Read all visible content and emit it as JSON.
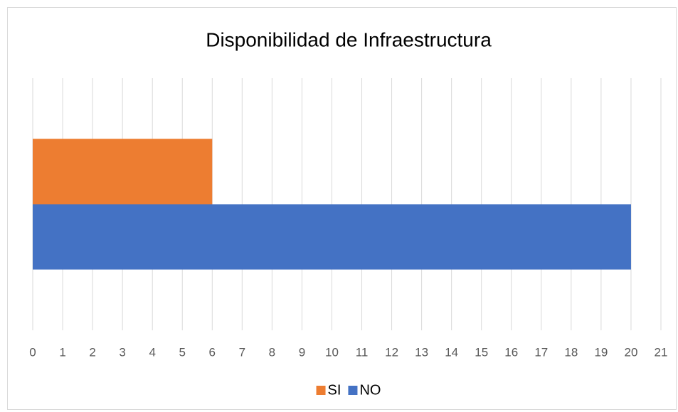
{
  "chart_data": {
    "type": "bar",
    "orientation": "horizontal",
    "title": "Disponibilidad de Infraestructura",
    "categories": [
      null
    ],
    "series": [
      {
        "name": "SI",
        "color": "#ed7d31",
        "values": [
          6
        ]
      },
      {
        "name": "NO",
        "color": "#4472c4",
        "values": [
          20
        ]
      }
    ],
    "xlim": [
      0,
      21
    ],
    "xticks": [
      0,
      1,
      2,
      3,
      4,
      5,
      6,
      7,
      8,
      9,
      10,
      11,
      12,
      13,
      14,
      15,
      16,
      17,
      18,
      19,
      20,
      21
    ],
    "grid": true,
    "legend": "bottom"
  }
}
